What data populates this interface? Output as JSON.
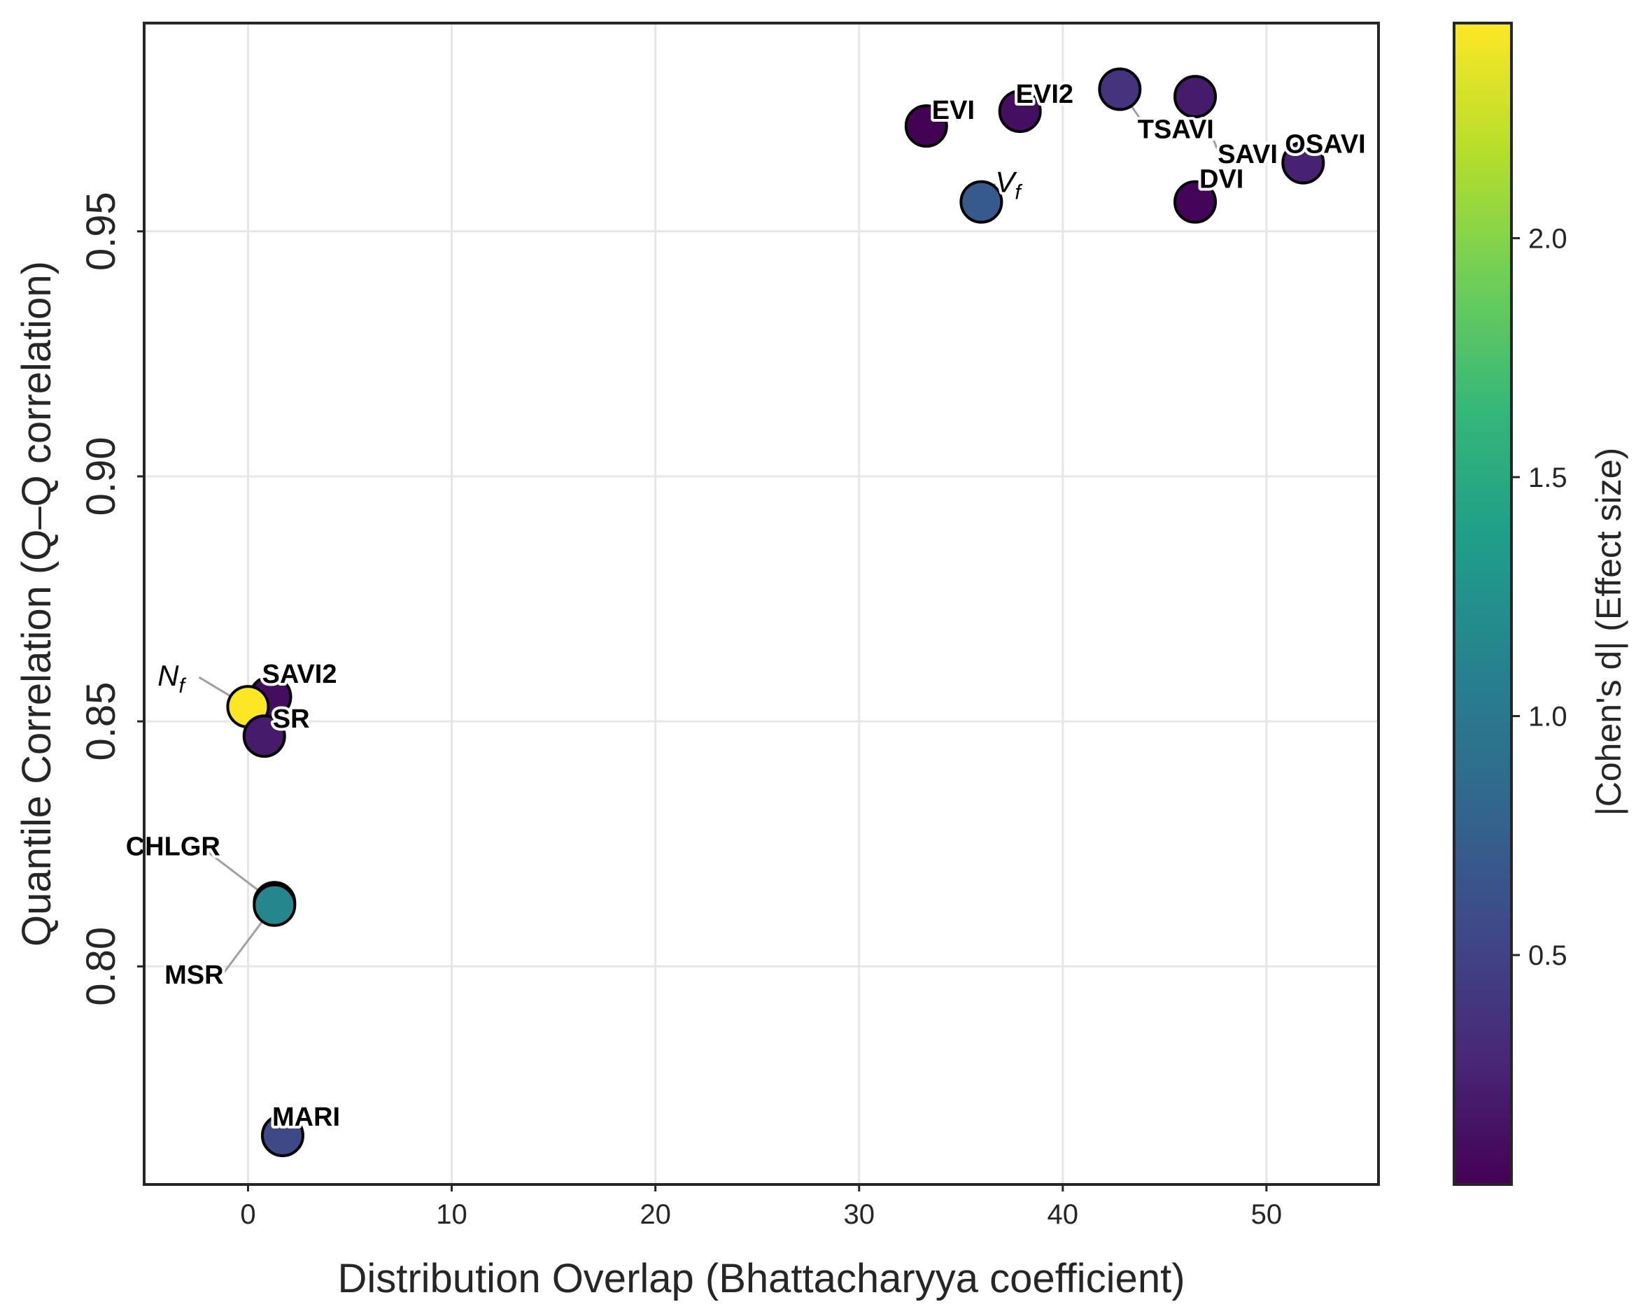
{
  "chart_data": {
    "type": "scatter",
    "title": "",
    "xlabel": "Distribution Overlap (Bhattacharyya coefficient)",
    "ylabel": "Quantile Correlation (Q–Q correlation)",
    "xlim": [
      -5.1,
      55.5
    ],
    "ylim": [
      0.7555,
      0.9925
    ],
    "xticks": [
      0,
      10,
      20,
      30,
      40,
      50
    ],
    "xtick_labels": [
      "0",
      "10",
      "20",
      "30",
      "40",
      "50"
    ],
    "yticks": [
      0.8,
      0.85,
      0.9,
      0.95
    ],
    "ytick_labels": [
      "0.80",
      "0.85",
      "0.90",
      "0.95"
    ],
    "grid": true,
    "colorbar": {
      "label": "|Cohen's d| (Effect size)",
      "range": [
        0.02,
        2.45
      ],
      "ticks": [
        0.5,
        1.0,
        1.5,
        2.0
      ],
      "tick_labels": [
        "0.5",
        "1.0",
        "1.5",
        "2.0"
      ],
      "colormap": "viridis",
      "stops": [
        "#440154",
        "#482878",
        "#3e4a89",
        "#31688e",
        "#26828e",
        "#1f9e89",
        "#35b779",
        "#6ece58",
        "#b5de2b",
        "#fde725"
      ]
    },
    "points": [
      {
        "label": "EVI",
        "x": 33.3,
        "y": 0.9715,
        "d": 0.03
      },
      {
        "label": "EVI2",
        "x": 37.9,
        "y": 0.9745,
        "d": 0.12
      },
      {
        "label": "TSAVI",
        "x": 42.8,
        "y": 0.979,
        "d": 0.38
      },
      {
        "label": "SAVI",
        "x": 46.5,
        "y": 0.9775,
        "d": 0.2
      },
      {
        "label": "OSAVI",
        "x": 51.8,
        "y": 0.964,
        "d": 0.25
      },
      {
        "label": "V_f",
        "x": 36.0,
        "y": 0.956,
        "d": 0.7
      },
      {
        "label": "DVI",
        "x": 46.5,
        "y": 0.956,
        "d": 0.05
      },
      {
        "label": "SAVI2",
        "x": 1.1,
        "y": 0.855,
        "d": 0.1
      },
      {
        "label": "N_f",
        "x": 0.0,
        "y": 0.853,
        "d": 2.45
      },
      {
        "label": "SR",
        "x": 0.8,
        "y": 0.847,
        "d": 0.2
      },
      {
        "label": "CHLGR",
        "x": 1.3,
        "y": 0.813,
        "d": 0.02
      },
      {
        "label": "MSR",
        "x": 1.3,
        "y": 0.8125,
        "d": 1.15
      },
      {
        "label": "MARI",
        "x": 1.7,
        "y": 0.7655,
        "d": 0.55
      }
    ]
  }
}
